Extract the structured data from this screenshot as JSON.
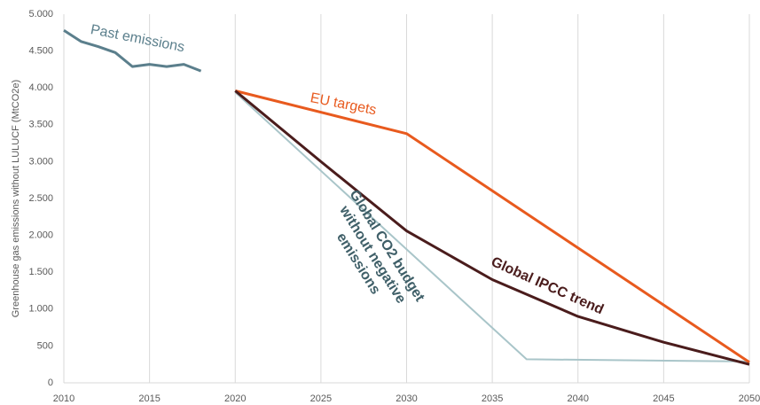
{
  "chart_data": {
    "type": "line",
    "y_label": "Greenhouse gas emissions without LULUCF (MtCO2e)",
    "xlim": [
      2010,
      2050
    ],
    "xticks": [
      2010,
      2015,
      2020,
      2025,
      2030,
      2035,
      2040,
      2045,
      2050
    ],
    "ylim": [
      0,
      5000
    ],
    "yticks": [
      0,
      {
        "value": 500,
        "label": "500"
      },
      {
        "value": 1000,
        "label": "1.000"
      },
      {
        "value": 1500,
        "label": "1.500"
      },
      {
        "value": 2000,
        "label": "2.000"
      },
      {
        "value": 2500,
        "label": "2.500"
      },
      {
        "value": 3000,
        "label": "3.000"
      },
      {
        "value": 3500,
        "label": "3.500"
      },
      {
        "value": 4000,
        "label": "4.000"
      },
      {
        "value": 4500,
        "label": "4.500"
      },
      {
        "value": 5000,
        "label": "5.000"
      }
    ],
    "grid": "x",
    "series": [
      {
        "name": "Past emissions",
        "color": "#5b7f8c",
        "x": [
          2010,
          2011,
          2012,
          2013,
          2014,
          2015,
          2016,
          2017,
          2018
        ],
        "values": [
          4780,
          4630,
          4560,
          4480,
          4290,
          4320,
          4290,
          4320,
          4230
        ]
      },
      {
        "name": "EU targets",
        "color": "#e85a1e",
        "x": [
          2020,
          2030,
          2050
        ],
        "values": [
          3960,
          3380,
          280
        ]
      },
      {
        "name": "Global IPCC trend",
        "color": "#4a1c1c",
        "x": [
          2020,
          2025,
          2030,
          2035,
          2040,
          2045,
          2050
        ],
        "values": [
          3960,
          3000,
          2060,
          1400,
          900,
          550,
          250
        ]
      },
      {
        "name": "Global CO2 budget without negative emissions",
        "color": "#a9c5c9",
        "x": [
          2020,
          2037,
          2050
        ],
        "values": [
          3940,
          320,
          290
        ]
      }
    ]
  }
}
